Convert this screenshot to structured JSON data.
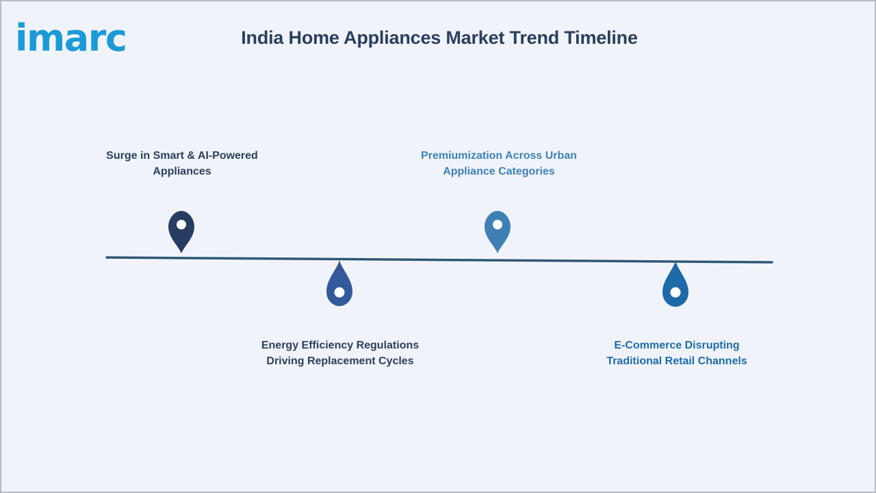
{
  "header": {
    "logo_text": "imarc",
    "title": "India Home Appliances Market Trend Timeline"
  },
  "timeline": {
    "events": [
      {
        "label_line1": "Surge in Smart & AI-Powered",
        "label_line2": "Appliances",
        "marker": "map-pin-icon",
        "color": "#263c61"
      },
      {
        "label_line1": "Energy Efficiency Regulations",
        "label_line2": "Driving Replacement Cycles",
        "marker": "drop-pin-icon",
        "color": "#34599a"
      },
      {
        "label_line1": "Premiumization Across Urban",
        "label_line2": "Appliance Categories",
        "marker": "map-pin-icon",
        "color": "#3f80b4"
      },
      {
        "label_line1": "E-Commerce Disrupting",
        "label_line2": "Traditional Retail Channels",
        "marker": "drop-pin-icon",
        "color": "#1e6aa8"
      }
    ]
  },
  "colors": {
    "background": "#f0f4fa",
    "title": "#2c3e5c",
    "line": "#2f5675",
    "logo": "#1c9ad6"
  }
}
